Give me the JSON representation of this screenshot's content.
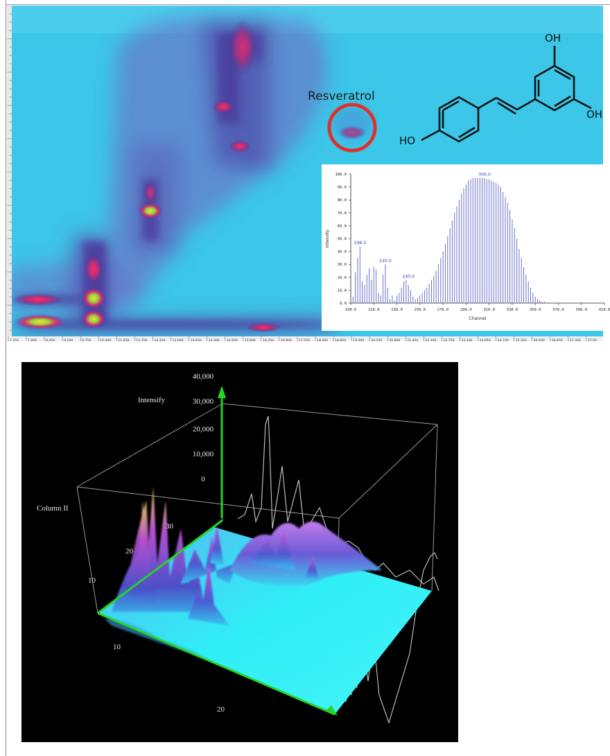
{
  "colors": {
    "map_bg": "#3cc6e8",
    "ring": "#e0302a",
    "surface_cyan": "#2ef0f4",
    "axis_green": "#22d622"
  },
  "top_panel": {
    "annotation": "Resveratrol",
    "structure_labels": {
      "oh_top": "OH",
      "oh_right": "OH",
      "ho_left": "HO"
    },
    "x_axis_ticks": [
      "7,150",
      "7,800",
      "8,450",
      "9,100",
      "9,750",
      "10,400",
      "11,050",
      "11,700",
      "12,350",
      "13,000",
      "13,650",
      "14,300",
      "14,950",
      "15,600",
      "16,250",
      "16,900",
      "17,550",
      "18,200",
      "18,850",
      "19,500",
      "20,150",
      "20,800",
      "21,450",
      "22,100",
      "22,750",
      "23,400",
      "24,050",
      "24,700",
      "25,350",
      "26,000",
      "26,650",
      "27,300",
      "27,95"
    ]
  },
  "chart_data": [
    {
      "type": "bar",
      "xlabel": "Channel",
      "ylabel": "Intensity",
      "xlim": [
        190,
        410
      ],
      "ylim": [
        0,
        100
      ],
      "x_ticks": [
        "190.0",
        "210.0",
        "230.0",
        "250.0",
        "270.0",
        "290.0",
        "310.0",
        "330.0",
        "350.0",
        "370.0",
        "390.0",
        "410.0"
      ],
      "y_ticks": [
        "0.0",
        "10.0",
        "20.0",
        "30.0",
        "40.0",
        "50.0",
        "60.0",
        "70.0",
        "80.0",
        "90.0",
        "100.0"
      ],
      "peak_labels": [
        {
          "x": 198,
          "label": "198.0",
          "y": 44
        },
        {
          "x": 220,
          "label": "220.0",
          "y": 30
        },
        {
          "x": 240,
          "label": "240.0",
          "y": 18
        },
        {
          "x": 306,
          "label": "306.0",
          "y": 97
        }
      ],
      "x": [
        192,
        194,
        196,
        198,
        200,
        202,
        204,
        206,
        208,
        210,
        212,
        214,
        216,
        218,
        220,
        222,
        224,
        226,
        228,
        230,
        232,
        234,
        236,
        238,
        240,
        242,
        244,
        246,
        248,
        250,
        252,
        254,
        256,
        258,
        260,
        262,
        264,
        266,
        268,
        270,
        272,
        274,
        276,
        278,
        280,
        282,
        284,
        286,
        288,
        290,
        292,
        294,
        296,
        298,
        300,
        302,
        304,
        306,
        308,
        310,
        312,
        314,
        316,
        318,
        320,
        322,
        324,
        326,
        328,
        330,
        332,
        334,
        336,
        338,
        340,
        342,
        344,
        346,
        348,
        350,
        352,
        354,
        356,
        358,
        360,
        362,
        364
      ],
      "values": [
        5,
        24,
        35,
        44,
        17,
        14,
        22,
        27,
        18,
        28,
        26,
        8,
        6,
        22,
        30,
        12,
        3,
        6,
        2,
        6,
        8,
        12,
        17,
        18,
        14,
        10,
        5,
        3,
        4,
        6,
        8,
        10,
        12,
        15,
        18,
        21,
        25,
        30,
        35,
        40,
        46,
        52,
        58,
        64,
        70,
        75,
        80,
        85,
        89,
        92,
        95,
        96,
        97,
        97,
        97,
        97,
        97,
        97,
        96,
        96,
        95,
        94,
        93,
        92,
        90,
        86,
        82,
        78,
        72,
        65,
        58,
        50,
        42,
        35,
        28,
        22,
        17,
        12,
        8,
        5,
        3,
        2,
        1,
        1,
        0.5,
        0.5,
        0.3
      ]
    },
    {
      "type": "surface",
      "zlabel": "Intensify",
      "ylabel": "Column II",
      "z_ticks": [
        "40,000",
        "30,000",
        "20,000",
        "10,000",
        "0"
      ],
      "left_ticks": [
        "30",
        "20",
        "10"
      ],
      "front_ticks": [
        "10",
        "20"
      ]
    }
  ]
}
